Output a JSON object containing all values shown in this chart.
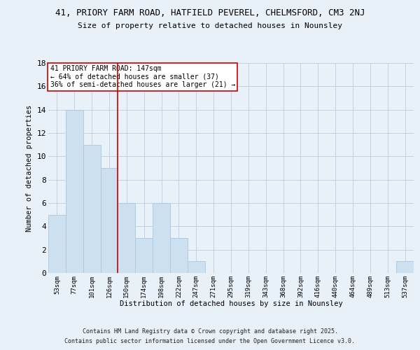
{
  "title1": "41, PRIORY FARM ROAD, HATFIELD PEVEREL, CHELMSFORD, CM3 2NJ",
  "title2": "Size of property relative to detached houses in Nounsley",
  "xlabel": "Distribution of detached houses by size in Nounsley",
  "ylabel": "Number of detached properties",
  "bin_labels": [
    "53sqm",
    "77sqm",
    "101sqm",
    "126sqm",
    "150sqm",
    "174sqm",
    "198sqm",
    "222sqm",
    "247sqm",
    "271sqm",
    "295sqm",
    "319sqm",
    "343sqm",
    "368sqm",
    "392sqm",
    "416sqm",
    "440sqm",
    "464sqm",
    "489sqm",
    "513sqm",
    "537sqm"
  ],
  "bar_heights": [
    5,
    14,
    11,
    9,
    6,
    3,
    6,
    3,
    1,
    0,
    0,
    0,
    0,
    0,
    0,
    0,
    0,
    0,
    0,
    0,
    1
  ],
  "bar_color": "#cce0f0",
  "bar_edge_color": "#aac8e0",
  "grid_color": "#bbcce0",
  "background_color": "#e8f0f8",
  "vline_x": 3.5,
  "vline_color": "#cc0000",
  "annotation_text": "41 PRIORY FARM ROAD: 147sqm\n← 64% of detached houses are smaller (37)\n36% of semi-detached houses are larger (21) →",
  "annotation_box_facecolor": "#ffffff",
  "annotation_box_edgecolor": "#cc0000",
  "ylim": [
    0,
    18
  ],
  "yticks": [
    0,
    2,
    4,
    6,
    8,
    10,
    12,
    14,
    16,
    18
  ],
  "footer1": "Contains HM Land Registry data © Crown copyright and database right 2025.",
  "footer2": "Contains public sector information licensed under the Open Government Licence v3.0."
}
